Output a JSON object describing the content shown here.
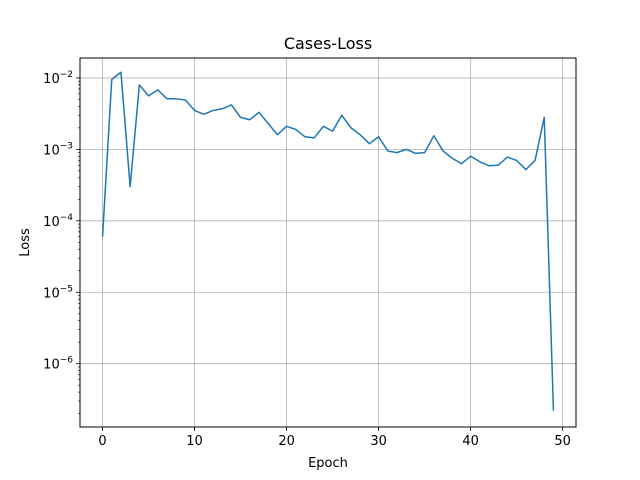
{
  "chart_data": {
    "type": "line",
    "title": "Cases-Loss",
    "xlabel": "Epoch",
    "ylabel": "Loss",
    "xlim": [
      -2.45,
      51.45
    ],
    "ylim": [
      1.3e-07,
      0.019
    ],
    "yscale": "log",
    "grid": true,
    "line_color": "#1f77b4",
    "x_ticks": [
      0,
      10,
      20,
      30,
      40,
      50
    ],
    "y_ticks": [
      {
        "value": 1e-06,
        "base": "10",
        "exp": "−6"
      },
      {
        "value": 1e-05,
        "base": "10",
        "exp": "−5"
      },
      {
        "value": 0.0001,
        "base": "10",
        "exp": "−4"
      },
      {
        "value": 0.001,
        "base": "10",
        "exp": "−3"
      },
      {
        "value": 0.01,
        "base": "10",
        "exp": "−2"
      }
    ],
    "series": [
      {
        "x": [
          0,
          1,
          2,
          3,
          4,
          5,
          6,
          7,
          8,
          9,
          10,
          11,
          12,
          13,
          14,
          15,
          16,
          17,
          18,
          19,
          20,
          21,
          22,
          23,
          24,
          25,
          26,
          27,
          28,
          29,
          30,
          31,
          32,
          33,
          34,
          35,
          36,
          37,
          38,
          39,
          40,
          41,
          42,
          43,
          44,
          45,
          46,
          47,
          48,
          49
        ],
        "values": [
          6e-05,
          0.0095,
          0.012,
          0.0003,
          0.008,
          0.0056,
          0.0068,
          0.0051,
          0.0051,
          0.0049,
          0.0035,
          0.0031,
          0.0035,
          0.0037,
          0.0042,
          0.0028,
          0.0026,
          0.0033,
          0.0023,
          0.0016,
          0.0021,
          0.0019,
          0.0015,
          0.00145,
          0.0021,
          0.0018,
          0.003,
          0.002,
          0.0016,
          0.0012,
          0.0015,
          0.00095,
          0.0009,
          0.001,
          0.00088,
          0.0009,
          0.00155,
          0.00095,
          0.00075,
          0.00063,
          0.0008,
          0.00067,
          0.00059,
          0.0006,
          0.00078,
          0.0007,
          0.00052,
          0.0007,
          0.0028,
          2.2e-07
        ]
      }
    ]
  }
}
